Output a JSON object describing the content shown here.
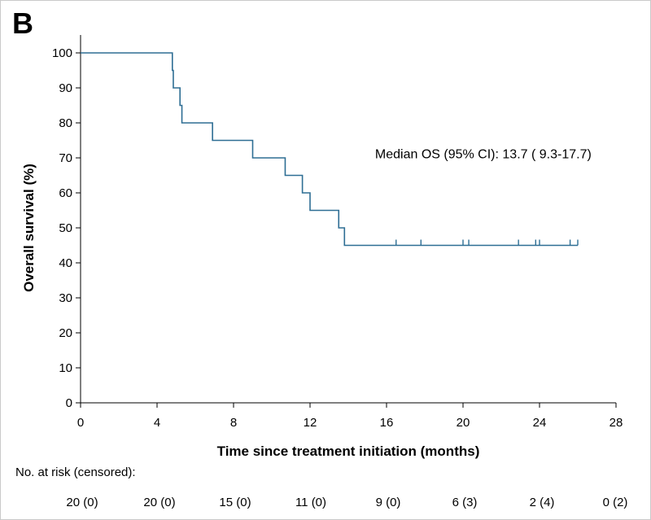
{
  "panel_label": "B",
  "chart_data": {
    "type": "line",
    "subtype": "kaplan-meier",
    "xlabel": "Time since treatment initiation (months)",
    "ylabel": "Overall survival (%)",
    "xlim": [
      0,
      28
    ],
    "ylim": [
      0,
      100
    ],
    "xticks": [
      0,
      4,
      8,
      12,
      16,
      20,
      24,
      28
    ],
    "yticks": [
      0,
      10,
      20,
      30,
      40,
      50,
      60,
      70,
      80,
      90,
      100
    ],
    "grid": false,
    "legend": "none",
    "line_color": "#2e6e94",
    "series": [
      {
        "steps": [
          {
            "x": 0,
            "y": 100
          },
          {
            "x": 4.8,
            "y": 95
          },
          {
            "x": 4.85,
            "y": 90
          },
          {
            "x": 5.2,
            "y": 85
          },
          {
            "x": 5.3,
            "y": 80
          },
          {
            "x": 6.9,
            "y": 75
          },
          {
            "x": 9.0,
            "y": 70
          },
          {
            "x": 10.7,
            "y": 65
          },
          {
            "x": 11.6,
            "y": 60
          },
          {
            "x": 12.0,
            "y": 55
          },
          {
            "x": 13.5,
            "y": 50
          },
          {
            "x": 13.8,
            "y": 45
          }
        ],
        "end_x": 26.0,
        "censored_x": [
          16.5,
          17.8,
          20.0,
          20.3,
          22.9,
          23.8,
          24.0,
          25.6,
          26.0
        ]
      }
    ],
    "annotations": [
      {
        "text": "Median OS (95% CI): 13.7 ( 9.3-17.7)",
        "x": 15.4,
        "y": 71
      }
    ],
    "risk_table": {
      "title": "No. at risk (censored):",
      "values": [
        "20 (0)",
        "20 (0)",
        "15 (0)",
        "11 (0)",
        "9 (0)",
        "6 (3)",
        "2 (4)",
        "0 (2)"
      ]
    }
  }
}
